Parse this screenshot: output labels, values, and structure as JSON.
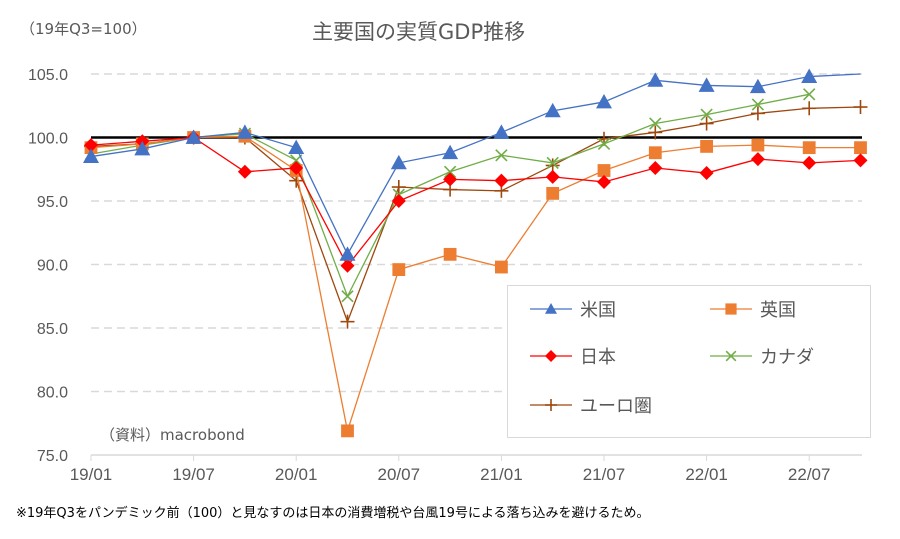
{
  "chart_data": {
    "type": "line",
    "title": "主要国の実質GDP推移",
    "unit_label": "（19年Q3=100）",
    "xlabel": "",
    "ylabel": "",
    "ylim": [
      75,
      105
    ],
    "yticks": [
      "105.0",
      "100.0",
      "95.0",
      "90.0",
      "85.0",
      "80.0",
      "75.0"
    ],
    "ytick_values": [
      105,
      100,
      95,
      90,
      85,
      80,
      75
    ],
    "x": [
      "19/01",
      "19/04",
      "19/07",
      "19/10",
      "20/01",
      "20/04",
      "20/07",
      "20/10",
      "21/01",
      "21/04",
      "21/07",
      "21/10",
      "22/01",
      "22/04",
      "22/07",
      "22/10"
    ],
    "xtick_labels": [
      "19/01",
      "19/07",
      "20/01",
      "20/07",
      "21/01",
      "21/07",
      "22/01",
      "22/07"
    ],
    "xtick_indices": [
      0,
      2,
      4,
      6,
      8,
      10,
      12,
      14
    ],
    "reference_line": 100,
    "grid": "horizontal dashed",
    "legend_position": "bottom-right",
    "series": [
      {
        "name": "米国",
        "color": "#4472C4",
        "marker": "triangle",
        "values": [
          98.5,
          99.1,
          100.0,
          100.4,
          99.2,
          90.8,
          98.0,
          98.8,
          100.4,
          102.1,
          102.8,
          104.5,
          104.1,
          104.0,
          104.8,
          105.1
        ]
      },
      {
        "name": "英国",
        "color": "#ED7D31",
        "marker": "square",
        "values": [
          99.2,
          99.5,
          100.0,
          100.1,
          97.4,
          76.9,
          89.6,
          90.8,
          89.8,
          95.6,
          97.4,
          98.8,
          99.3,
          99.4,
          99.2,
          99.2
        ]
      },
      {
        "name": "日本",
        "color": "#FF0000",
        "marker": "diamond",
        "values": [
          99.4,
          99.7,
          100.0,
          97.3,
          97.6,
          89.9,
          95.0,
          96.7,
          96.6,
          96.9,
          96.5,
          97.6,
          97.2,
          98.3,
          98.0,
          98.2
        ]
      },
      {
        "name": "カナダ",
        "color": "#70AD47",
        "marker": "x",
        "values": [
          98.7,
          99.4,
          100.0,
          100.3,
          98.2,
          87.5,
          95.5,
          97.3,
          98.6,
          98.0,
          99.5,
          101.1,
          101.8,
          102.6,
          103.4,
          null
        ]
      },
      {
        "name": "ユーロ圏",
        "color": "#9E480E",
        "marker": "plus",
        "values": [
          99.3,
          99.5,
          100.0,
          100.0,
          96.6,
          85.5,
          96.1,
          95.9,
          95.8,
          97.8,
          99.9,
          100.4,
          101.1,
          101.9,
          102.3,
          102.4
        ]
      }
    ],
    "source": "（資料）macrobond",
    "footnote": "※19年Q3をパンデミック前（100）と見なすのは日本の消費増税や台風19号による落ち込みを避けるため。"
  }
}
